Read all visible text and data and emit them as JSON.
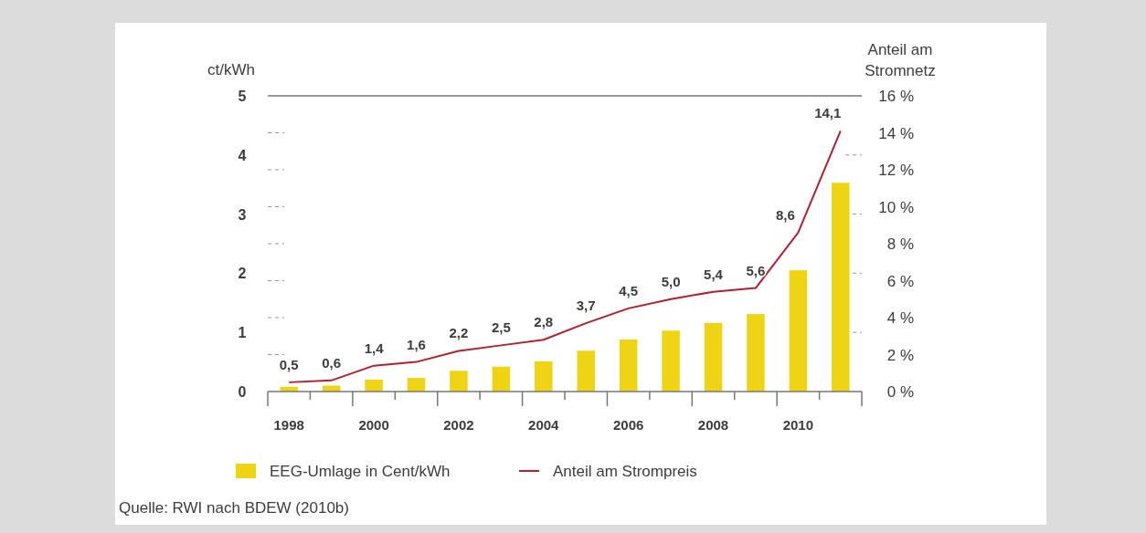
{
  "chart_data": {
    "type": "bar",
    "ylabel": "ct/kWh",
    "y2label": "Anteil am Stromnetz",
    "categories": [
      "1998",
      null,
      "2000",
      null,
      "2002",
      null,
      "2004",
      null,
      "2006",
      null,
      "2008",
      null,
      "2010",
      null
    ],
    "series": [
      {
        "name": "EEG-Umlage in Cent/kWh",
        "color": "#efd415",
        "values": [
          0.08,
          0.1,
          0.2,
          0.23,
          0.35,
          0.42,
          0.51,
          0.69,
          0.88,
          1.03,
          1.16,
          1.31,
          2.05,
          3.53
        ]
      },
      {
        "name": "Anteil am Strompreis",
        "type": "line",
        "axis": "y2",
        "color": "#b0202e",
        "values": [
          0.5,
          0.6,
          1.4,
          1.6,
          2.2,
          2.5,
          2.8,
          3.7,
          4.5,
          5.0,
          5.4,
          5.6,
          8.6,
          14.1
        ],
        "value_labels": [
          "0,5",
          "0,6",
          "1,4",
          "1,6",
          "2,2",
          "2,5",
          "2,8",
          "3,7",
          "4,5",
          "5,0",
          "5,4",
          "5,6",
          "8,6",
          "14,1"
        ]
      }
    ],
    "ylim": [
      0,
      5
    ],
    "yticks": [
      0,
      1,
      2,
      3,
      4,
      5
    ],
    "y2lim": [
      0,
      16
    ],
    "y2ticks": [
      {
        "value": 0,
        "label": "0 %"
      },
      {
        "value": 2,
        "label": "2 %"
      },
      {
        "value": 4,
        "label": "4 %"
      },
      {
        "value": 6,
        "label": "6 %"
      },
      {
        "value": 8,
        "label": "8 %"
      },
      {
        "value": 10,
        "label": "10 %"
      },
      {
        "value": 12,
        "label": "12 %"
      },
      {
        "value": 14,
        "label": "14 %"
      },
      {
        "value": 16,
        "label": "16 %"
      }
    ],
    "legend": "bottom",
    "annotations": [
      "Quelle: RWI nach BDEW (2010b)"
    ]
  }
}
